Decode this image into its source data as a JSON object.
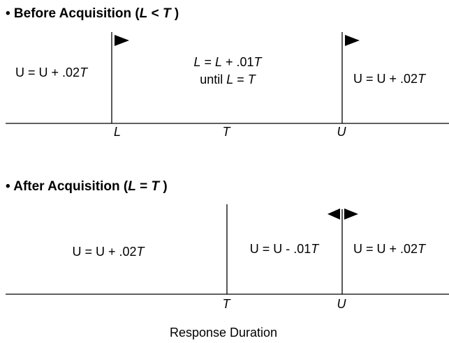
{
  "before": {
    "title": [
      "• Before Acquisition (",
      "L",
      " < ",
      "T",
      " )"
    ],
    "left_rule": [
      "U = U + .02",
      "T"
    ],
    "middle_rule": [
      [
        "L",
        " = ",
        "L",
        " + .01",
        "T"
      ],
      [
        "until ",
        "L",
        " = ",
        "T"
      ]
    ],
    "right_rule": [
      "U = U + .02",
      "T"
    ],
    "axis_labels": [
      "L",
      "T",
      "U"
    ]
  },
  "after": {
    "title": [
      "• After Acquisition (",
      "L",
      " = ",
      "T",
      " )"
    ],
    "left_rule": [
      "U = U + .02",
      "T"
    ],
    "middle_rule": [
      "U = U - .01",
      "T"
    ],
    "right_rule": [
      "U = U + .02",
      "T"
    ],
    "axis_labels": [
      "T",
      "U"
    ]
  },
  "x_axis_label": "Response Duration"
}
